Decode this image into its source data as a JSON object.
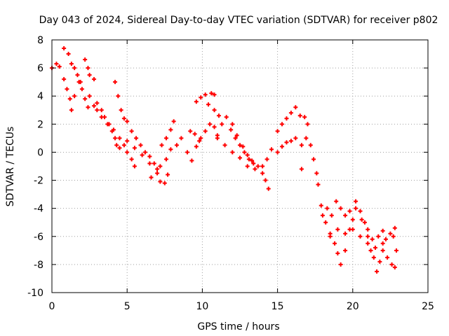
{
  "chart_data": {
    "type": "scatter",
    "title": "Day 043 of 2024, Sidereal Day-to-day VTEC variation (SDTVAR) for receiver p802",
    "xlabel": "GPS time / hours",
    "ylabel": "SDTVAR / TECUs",
    "xlim": [
      0,
      25
    ],
    "ylim": [
      -10,
      8
    ],
    "xticks": [
      0,
      5,
      10,
      15,
      20,
      25
    ],
    "yticks": [
      -10,
      -8,
      -6,
      -4,
      -2,
      0,
      2,
      4,
      6,
      8
    ],
    "grid": true,
    "marker": "+",
    "colors": {
      "marker": "#ff0000",
      "grid": "#a0a0a0",
      "axis": "#000000"
    },
    "series": [
      {
        "name": "SDTVAR",
        "points": [
          [
            0.0,
            6.0
          ],
          [
            0.3,
            6.3
          ],
          [
            0.5,
            6.1
          ],
          [
            0.8,
            7.4
          ],
          [
            1.1,
            7.0
          ],
          [
            1.3,
            6.3
          ],
          [
            1.5,
            6.0
          ],
          [
            1.7,
            5.5
          ],
          [
            1.9,
            5.0
          ],
          [
            2.2,
            6.6
          ],
          [
            2.4,
            6.0
          ],
          [
            2.5,
            5.5
          ],
          [
            2.8,
            5.2
          ],
          [
            0.8,
            5.2
          ],
          [
            1.0,
            4.5
          ],
          [
            1.2,
            3.8
          ],
          [
            1.3,
            3.0
          ],
          [
            1.5,
            4.0
          ],
          [
            1.8,
            5.0
          ],
          [
            2.0,
            4.5
          ],
          [
            2.2,
            3.8
          ],
          [
            2.4,
            3.2
          ],
          [
            2.5,
            4.0
          ],
          [
            2.8,
            3.3
          ],
          [
            3.0,
            3.5
          ],
          [
            3.3,
            3.0
          ],
          [
            3.5,
            2.5
          ],
          [
            3.8,
            2.0
          ],
          [
            4.0,
            1.5
          ],
          [
            4.2,
            1.0
          ],
          [
            4.3,
            0.5
          ],
          [
            4.5,
            0.3
          ],
          [
            4.8,
            0.5
          ],
          [
            5.0,
            0.0
          ],
          [
            5.3,
            -0.5
          ],
          [
            5.5,
            -1.0
          ],
          [
            4.2,
            5.0
          ],
          [
            4.4,
            4.0
          ],
          [
            4.6,
            3.0
          ],
          [
            4.8,
            2.4
          ],
          [
            5.0,
            2.2
          ],
          [
            5.3,
            1.5
          ],
          [
            5.6,
            1.0
          ],
          [
            5.9,
            0.5
          ],
          [
            6.2,
            0.0
          ],
          [
            6.5,
            -0.3
          ],
          [
            6.8,
            -0.8
          ],
          [
            7.0,
            -1.5
          ],
          [
            7.2,
            -2.1
          ],
          [
            7.5,
            -2.2
          ],
          [
            7.7,
            -1.6
          ],
          [
            3.0,
            3.0
          ],
          [
            3.3,
            2.5
          ],
          [
            3.7,
            2.0
          ],
          [
            4.1,
            1.6
          ],
          [
            4.5,
            1.0
          ],
          [
            5.0,
            0.8
          ],
          [
            5.5,
            0.3
          ],
          [
            6.0,
            -0.2
          ],
          [
            6.5,
            -0.8
          ],
          [
            7.0,
            -1.2
          ],
          [
            6.6,
            -1.8
          ],
          [
            7.2,
            -1.0
          ],
          [
            7.6,
            -0.5
          ],
          [
            7.9,
            0.2
          ],
          [
            7.3,
            0.5
          ],
          [
            7.6,
            1.0
          ],
          [
            7.9,
            1.6
          ],
          [
            8.1,
            2.2
          ],
          [
            8.3,
            0.5
          ],
          [
            8.6,
            1.0
          ],
          [
            9.0,
            0.0
          ],
          [
            9.3,
            -0.6
          ],
          [
            9.6,
            0.4
          ],
          [
            9.9,
            1.0
          ],
          [
            10.2,
            1.5
          ],
          [
            10.5,
            2.0
          ],
          [
            10.8,
            1.8
          ],
          [
            11.0,
            1.2
          ],
          [
            9.2,
            1.5
          ],
          [
            9.5,
            1.3
          ],
          [
            9.8,
            0.8
          ],
          [
            9.6,
            3.6
          ],
          [
            9.9,
            3.9
          ],
          [
            10.2,
            4.1
          ],
          [
            10.6,
            4.2
          ],
          [
            10.8,
            4.1
          ],
          [
            10.4,
            3.4
          ],
          [
            10.8,
            3.0
          ],
          [
            11.1,
            2.6
          ],
          [
            11.3,
            2.0
          ],
          [
            11.6,
            2.5
          ],
          [
            11.9,
            1.6
          ],
          [
            12.2,
            1.0
          ],
          [
            12.5,
            0.5
          ],
          [
            12.8,
            0.0
          ],
          [
            13.1,
            -0.5
          ],
          [
            13.4,
            -0.8
          ],
          [
            13.7,
            -1.0
          ],
          [
            14.0,
            -1.5
          ],
          [
            14.2,
            -2.0
          ],
          [
            14.4,
            -2.6
          ],
          [
            12.0,
            2.0
          ],
          [
            12.3,
            1.2
          ],
          [
            12.7,
            0.4
          ],
          [
            13.0,
            -0.2
          ],
          [
            13.3,
            -0.6
          ],
          [
            11.0,
            1.0
          ],
          [
            11.5,
            0.5
          ],
          [
            12.0,
            0.0
          ],
          [
            12.5,
            -0.4
          ],
          [
            13.0,
            -1.0
          ],
          [
            13.5,
            -1.2
          ],
          [
            14.0,
            -1.0
          ],
          [
            14.3,
            -0.5
          ],
          [
            14.6,
            0.2
          ],
          [
            15.0,
            0.0
          ],
          [
            15.3,
            0.4
          ],
          [
            15.6,
            0.7
          ],
          [
            15.9,
            0.8
          ],
          [
            16.2,
            1.0
          ],
          [
            16.6,
            0.5
          ],
          [
            16.9,
            1.0
          ],
          [
            15.0,
            1.5
          ],
          [
            15.3,
            2.0
          ],
          [
            15.6,
            2.4
          ],
          [
            15.9,
            2.8
          ],
          [
            16.2,
            3.2
          ],
          [
            16.5,
            2.6
          ],
          [
            16.8,
            2.5
          ],
          [
            16.6,
            -1.2
          ],
          [
            17.0,
            2.0
          ],
          [
            17.2,
            0.5
          ],
          [
            17.4,
            -0.5
          ],
          [
            17.6,
            -1.5
          ],
          [
            17.7,
            -2.3
          ],
          [
            17.9,
            -3.8
          ],
          [
            18.0,
            -4.5
          ],
          [
            18.2,
            -5.0
          ],
          [
            18.5,
            -5.8
          ],
          [
            18.8,
            -6.5
          ],
          [
            19.0,
            -7.2
          ],
          [
            19.2,
            -8.0
          ],
          [
            19.5,
            -7.0
          ],
          [
            19.8,
            -5.5
          ],
          [
            20.0,
            -4.8
          ],
          [
            18.3,
            -4.0
          ],
          [
            18.6,
            -4.5
          ],
          [
            18.9,
            -3.5
          ],
          [
            19.2,
            -4.0
          ],
          [
            19.5,
            -4.5
          ],
          [
            19.8,
            -4.2
          ],
          [
            20.2,
            -3.5
          ],
          [
            20.5,
            -4.2
          ],
          [
            20.8,
            -5.0
          ],
          [
            21.0,
            -6.0
          ],
          [
            21.2,
            -7.0
          ],
          [
            21.4,
            -7.5
          ],
          [
            21.6,
            -8.5
          ],
          [
            21.8,
            -7.8
          ],
          [
            22.0,
            -7.0
          ],
          [
            18.5,
            -6.0
          ],
          [
            19.0,
            -5.5
          ],
          [
            19.5,
            -5.8
          ],
          [
            20.0,
            -5.5
          ],
          [
            20.5,
            -6.0
          ],
          [
            21.0,
            -6.5
          ],
          [
            21.5,
            -6.8
          ],
          [
            22.0,
            -6.5
          ],
          [
            22.3,
            -7.5
          ],
          [
            22.6,
            -8.0
          ],
          [
            22.8,
            -8.2
          ],
          [
            22.9,
            -7.0
          ],
          [
            22.7,
            -6.0
          ],
          [
            22.5,
            -5.8
          ],
          [
            22.8,
            -5.4
          ],
          [
            20.2,
            -4.0
          ],
          [
            20.6,
            -4.8
          ],
          [
            21.0,
            -5.5
          ],
          [
            21.3,
            -6.2
          ],
          [
            21.7,
            -6.0
          ],
          [
            22.0,
            -5.6
          ],
          [
            22.2,
            -6.2
          ]
        ]
      }
    ]
  }
}
